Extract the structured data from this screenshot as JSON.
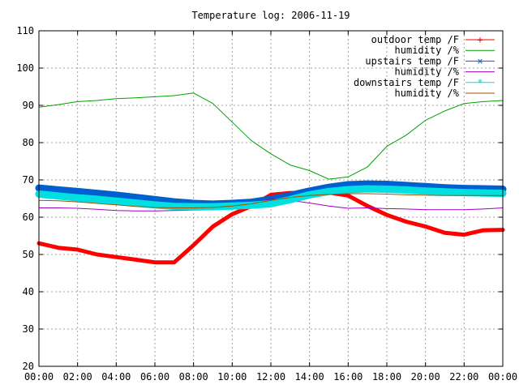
{
  "chart_data": {
    "type": "line",
    "title": "Temperature log: 2006-11-19",
    "xlabel": "",
    "ylabel": "",
    "ylim": [
      20,
      110
    ],
    "xlim": [
      "00:00",
      "24:00"
    ],
    "grid": true,
    "legend_position": "top-right",
    "x_ticks": [
      "00:00",
      "02:00",
      "04:00",
      "06:00",
      "08:00",
      "10:00",
      "12:00",
      "14:00",
      "16:00",
      "18:00",
      "20:00",
      "22:00",
      "00:00"
    ],
    "y_ticks": [
      "20",
      "30",
      "40",
      "50",
      "60",
      "70",
      "80",
      "90",
      "100",
      "110"
    ],
    "x": [
      "00:00",
      "01:00",
      "02:00",
      "03:00",
      "04:00",
      "05:00",
      "06:00",
      "07:00",
      "08:00",
      "09:00",
      "10:00",
      "11:00",
      "12:00",
      "13:00",
      "14:00",
      "15:00",
      "16:00",
      "17:00",
      "18:00",
      "19:00",
      "20:00",
      "21:00",
      "22:00",
      "23:00",
      "24:00"
    ],
    "series": [
      {
        "name": "outdoor temp /F",
        "color": "#ff0000",
        "width": 5,
        "values": [
          53.0,
          51.8,
          51.3,
          50.0,
          49.3,
          48.6,
          47.9,
          47.9,
          52.5,
          57.5,
          60.8,
          63.0,
          66.0,
          66.5,
          66.6,
          66.6,
          65.8,
          63.0,
          60.6,
          58.8,
          57.5,
          55.8,
          55.3,
          56.5,
          56.6
        ]
      },
      {
        "name": "humidity /%",
        "color": "#00a000",
        "width": 1,
        "values": [
          89.5,
          90.2,
          91.0,
          91.3,
          91.8,
          92.0,
          92.3,
          92.6,
          93.3,
          90.5,
          85.5,
          80.5,
          77.0,
          74.0,
          72.5,
          70.2,
          70.8,
          73.5,
          79.0,
          82.0,
          86.0,
          88.5,
          90.5,
          91.0,
          91.3
        ]
      },
      {
        "name": "upstairs temp /F",
        "color": "#0060d0",
        "width": 9,
        "values": [
          67.8,
          67.3,
          66.9,
          66.4,
          65.9,
          65.3,
          64.7,
          64.1,
          63.7,
          63.5,
          63.7,
          64.0,
          64.8,
          65.8,
          67.0,
          68.0,
          68.7,
          68.9,
          68.8,
          68.5,
          68.2,
          67.9,
          67.7,
          67.6,
          67.5
        ]
      },
      {
        "name": "humidity /%",
        "color": "#a000c0",
        "width": 1,
        "values": [
          62.5,
          62.5,
          62.4,
          62.1,
          61.8,
          61.7,
          61.7,
          61.8,
          61.9,
          62.0,
          62.5,
          63.2,
          65.0,
          64.5,
          63.8,
          63.0,
          62.4,
          62.5,
          62.3,
          62.2,
          62.0,
          62.0,
          62.0,
          62.2,
          62.5
        ]
      },
      {
        "name": "downstairs temp /F",
        "color": "#00e0e0",
        "width": 9,
        "values": [
          66.2,
          65.7,
          65.2,
          64.8,
          64.3,
          63.8,
          63.3,
          62.9,
          62.8,
          62.8,
          63.0,
          63.2,
          63.6,
          64.7,
          66.0,
          66.9,
          67.4,
          67.6,
          67.5,
          67.3,
          67.0,
          66.8,
          66.6,
          66.5,
          66.4
        ]
      },
      {
        "name": "humidity /%",
        "color": "#a05000",
        "width": 1,
        "values": [
          64.5,
          64.4,
          64.1,
          63.7,
          63.3,
          62.9,
          62.6,
          62.5,
          62.5,
          62.6,
          63.0,
          63.6,
          64.5,
          65.3,
          65.8,
          66.1,
          66.3,
          66.3,
          66.2,
          66.0,
          65.9,
          65.8,
          65.8,
          65.8,
          65.8
        ]
      }
    ]
  }
}
